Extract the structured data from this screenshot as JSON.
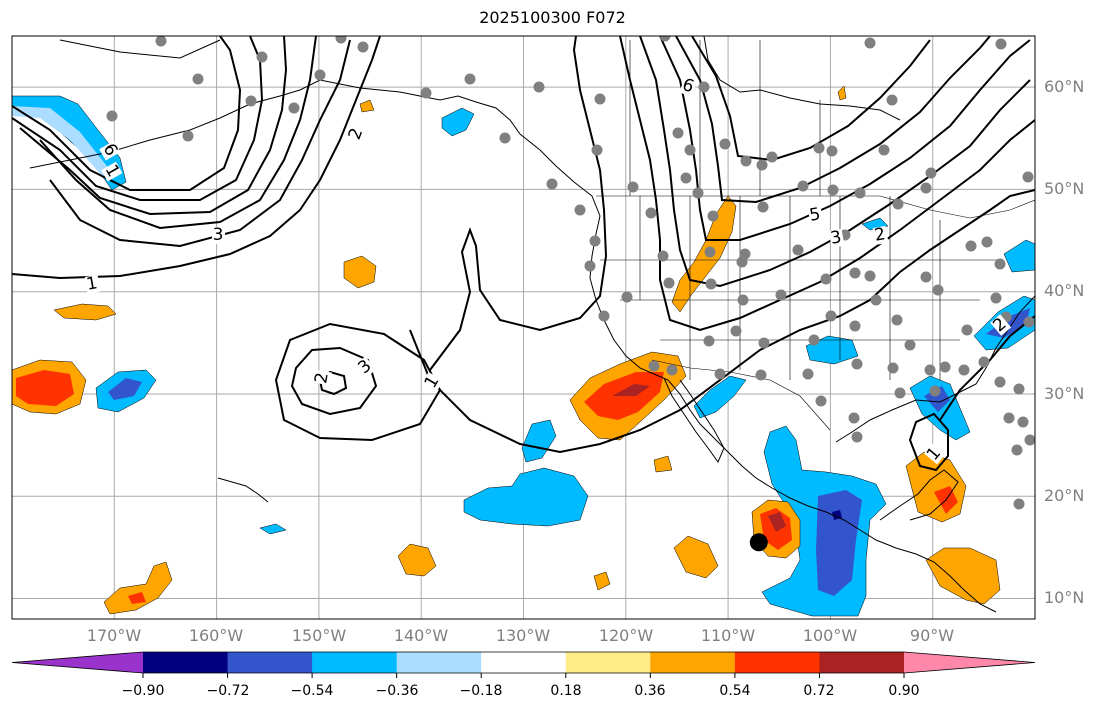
{
  "title": "2025100300 F072",
  "map": {
    "projection": "PlateCarree",
    "extent": {
      "lon_min": -180,
      "lon_max": -80,
      "lat_min": 8,
      "lat_max": 65
    },
    "latitude_labels": [
      "60°N",
      "50°N",
      "40°N",
      "30°N",
      "20°N",
      "10°N"
    ],
    "longitude_labels": [
      "170°W",
      "160°W",
      "150°W",
      "140°W",
      "130°W",
      "120°W",
      "110°W",
      "100°W",
      "90°W"
    ],
    "contour_labels": [
      "1",
      "3",
      "6",
      "2",
      "3",
      "2",
      "1",
      "6",
      "5",
      "3",
      "2",
      "1",
      "2",
      "1"
    ],
    "station_marker": {
      "lon": -107,
      "lat": 15.5
    }
  },
  "colorbar": {
    "colors": [
      "#9933cc",
      "#000080",
      "#3355cc",
      "#00bbff",
      "#aaddff",
      "#ffffff",
      "#ffee88",
      "#ffa500",
      "#ff3300",
      "#aa2222",
      "#ff88aa"
    ],
    "tick_labels": [
      "−0.90",
      "−0.72",
      "−0.54",
      "−0.36",
      "−0.18",
      "0.18",
      "0.36",
      "0.54",
      "0.72",
      "0.90"
    ]
  }
}
